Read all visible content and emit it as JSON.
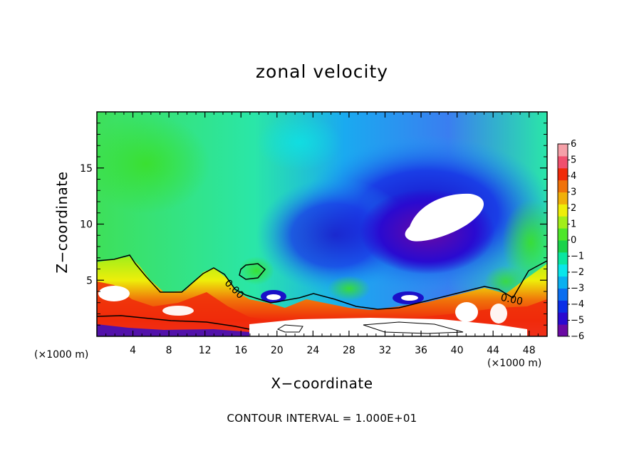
{
  "chart_data": {
    "type": "heatmap",
    "title": "zonal velocity",
    "xlabel": "X−coordinate",
    "ylabel": "Z−coordinate",
    "x_unit_left": "(×1000 m)",
    "x_unit_right": "(×1000 m)",
    "footer": "CONTOUR INTERVAL = 1.000E+01",
    "xlim": [
      0,
      50
    ],
    "ylim": [
      0,
      20
    ],
    "x_ticks": [
      4,
      8,
      12,
      16,
      20,
      24,
      28,
      32,
      36,
      40,
      44,
      48
    ],
    "y_ticks": [
      5,
      10,
      15
    ],
    "colorbar": {
      "min": -6,
      "max": 6,
      "tick_labels": [
        "6",
        "5",
        "4",
        "3",
        "2",
        "1",
        "0",
        "−1",
        "−2",
        "−3",
        "−4",
        "−5",
        "−6"
      ],
      "colors": [
        "#6a0aa3",
        "#2a0ad0",
        "#0a2ee6",
        "#0a6ef0",
        "#0ab0f0",
        "#0ae6ea",
        "#0ae6a0",
        "#1ad24a",
        "#4ee62a",
        "#a2ee1a",
        "#eeee0a",
        "#f0b00a",
        "#f0720a",
        "#f02a0a",
        "#f0506e",
        "#f5a0a8"
      ]
    },
    "contour_labels": [
      "0.00",
      "0.00"
    ],
    "annotations": [
      {
        "text": "0.00",
        "x": 15,
        "z": 4
      },
      {
        "text": "0.00",
        "x": 46,
        "z": 3
      }
    ]
  }
}
